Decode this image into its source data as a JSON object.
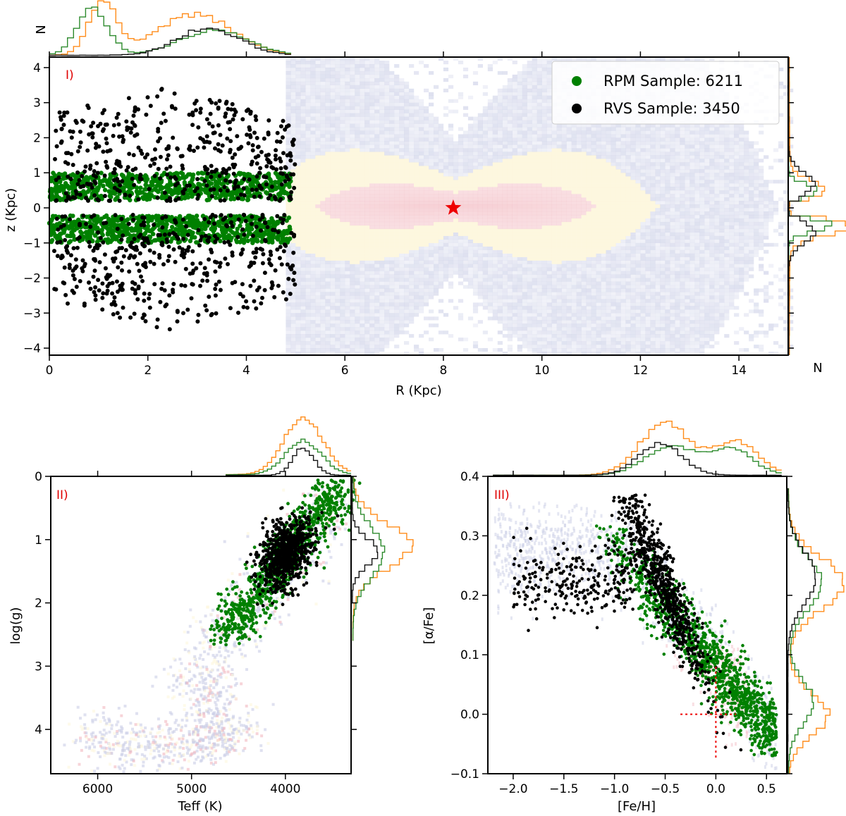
{
  "colors": {
    "rpm": "#008000",
    "rvs": "#000000",
    "hist_rpm": "#2e8b2e",
    "hist_rvs": "#111111",
    "hist_all": "#ff8c1a",
    "sun_star": "#ee0000",
    "panel_label": "#e00000",
    "density_low": "#c9cde6",
    "density_mid": "#fdf6dc",
    "density_high": "#f2b8c0"
  },
  "chart_data": [
    {
      "type": "scatter",
      "panel_label": "I)",
      "xlabel": "R (Kpc)",
      "ylabel": "z (Kpc)",
      "xlim": [
        0,
        15
      ],
      "ylim": [
        -4.2,
        4.3
      ],
      "x_ticks": [
        0,
        2,
        4,
        6,
        8,
        10,
        12,
        14
      ],
      "y_ticks": [
        -4,
        -3,
        -2,
        -1,
        0,
        1,
        2,
        3,
        4
      ],
      "x_tick_labels": [
        "0",
        "2",
        "4",
        "6",
        "8",
        "10",
        "12",
        "14"
      ],
      "y_tick_labels": [
        "−4",
        "−3",
        "−2",
        "−1",
        "0",
        "1",
        "2",
        "3",
        "4"
      ],
      "top_hist_label": "N",
      "right_hist_label": "N",
      "legend": {
        "placement": "top-right",
        "entries": [
          {
            "label": "RPM Sample: 6211",
            "color": "#008000"
          },
          {
            "label": "RVS Sample: 3450",
            "color": "#000000"
          }
        ]
      },
      "sun_marker": {
        "x": 8.2,
        "z": 0.0
      },
      "series": [
        {
          "name": "RPM Sample: 6211",
          "count": 6211,
          "x_range": [
            0,
            4.9
          ],
          "z_range_abs": [
            0.15,
            1.0
          ]
        },
        {
          "name": "RVS Sample: 3450",
          "count": 3450,
          "x_range": [
            0,
            5.0
          ],
          "z_range_abs": [
            0.2,
            3.5
          ]
        }
      ]
    },
    {
      "type": "scatter",
      "panel_label": "II)",
      "xlabel": "Teff (K)",
      "ylabel": "log(g)",
      "xlim": [
        6500,
        3300
      ],
      "ylim": [
        4.7,
        0
      ],
      "x_ticks": [
        6000,
        5000,
        4000
      ],
      "y_ticks": [
        0,
        1,
        2,
        3,
        4
      ],
      "x_tick_labels": [
        "6000",
        "5000",
        "4000"
      ],
      "y_tick_labels": [
        "0",
        "1",
        "2",
        "3",
        "4"
      ],
      "series": [
        {
          "name": "RPM Sample: 6211",
          "teff_range": [
            3400,
            4700
          ],
          "logg_range": [
            0.1,
            2.6
          ]
        },
        {
          "name": "RVS Sample: 3450",
          "teff_range": [
            3700,
            4400
          ],
          "logg_range": [
            0.6,
            1.9
          ]
        }
      ]
    },
    {
      "type": "scatter",
      "panel_label": "III)",
      "xlabel": "[Fe/H]",
      "ylabel": "[α/Fe]",
      "xlim": [
        -2.25,
        0.7
      ],
      "ylim": [
        -0.1,
        0.4
      ],
      "x_ticks": [
        -2.0,
        -1.5,
        -1.0,
        -0.5,
        0.0,
        0.5
      ],
      "y_ticks": [
        -0.1,
        0.0,
        0.1,
        0.2,
        0.3,
        0.4
      ],
      "x_tick_labels": [
        "−2.0",
        "−1.5",
        "−1.0",
        "−0.5",
        "0.0",
        "0.5"
      ],
      "y_tick_labels": [
        "−0.1",
        "0.0",
        "0.1",
        "0.2",
        "0.3",
        "0.4"
      ],
      "reference_lines": {
        "x": 0.0,
        "y": 0.0
      },
      "series": [
        {
          "name": "RPM Sample: 6211",
          "feh_range": [
            -1.2,
            0.6
          ],
          "afe_range": [
            -0.05,
            0.3
          ]
        },
        {
          "name": "RVS Sample: 3450",
          "feh_range": [
            -2.0,
            0.3
          ],
          "afe_range": [
            0.0,
            0.37
          ]
        }
      ]
    }
  ]
}
